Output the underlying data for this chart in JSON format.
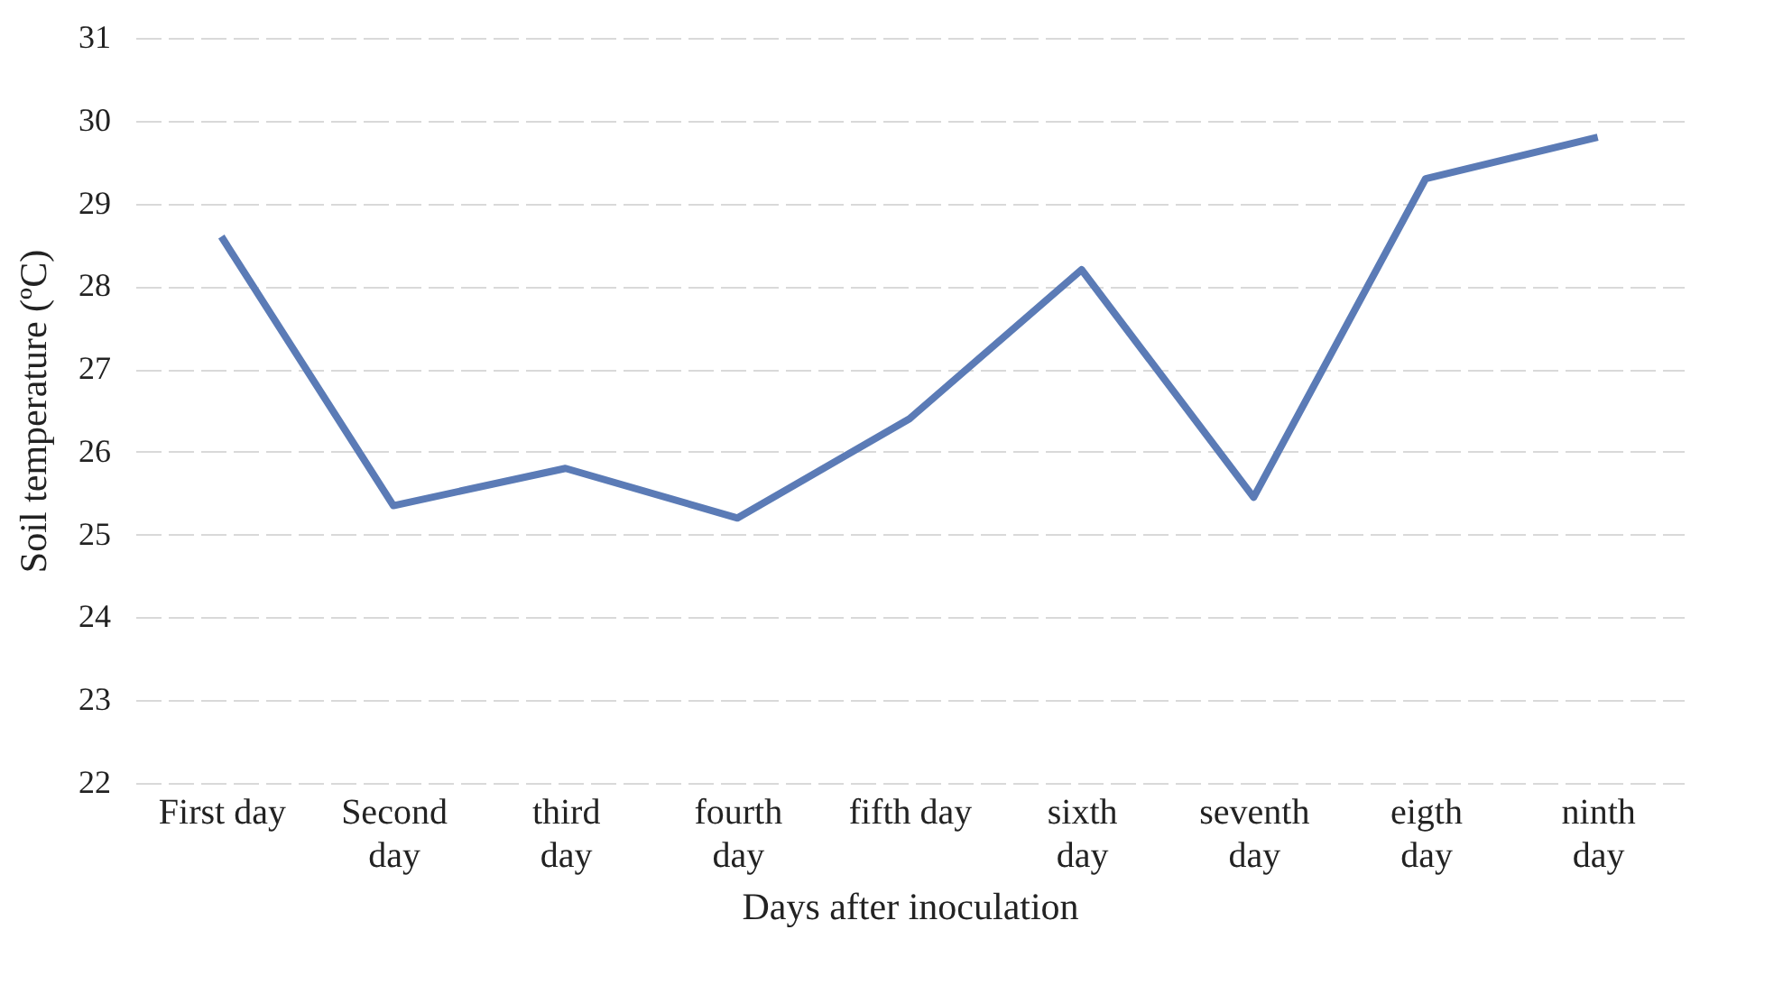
{
  "chart_data": {
    "type": "line",
    "xlabel": "Days after inoculation",
    "ylabel": "Soil temperature (ºC)",
    "categories": [
      "First day",
      "Second\nday",
      "third\nday",
      "fourth\nday",
      "fifth day",
      "sixth\nday",
      "seventh\nday",
      "eigth\nday",
      "ninth\nday"
    ],
    "series": [
      {
        "color": "#5b7bb6",
        "values": [
          28.6,
          25.35,
          25.8,
          25.2,
          26.4,
          28.2,
          25.45,
          29.3,
          29.8
        ]
      }
    ],
    "ylim": [
      22,
      31
    ],
    "yticks": [
      22,
      23,
      24,
      25,
      26,
      27,
      28,
      29,
      30,
      31
    ],
    "grid": "y",
    "legend": false,
    "marker": "none",
    "line_style": "solid"
  }
}
